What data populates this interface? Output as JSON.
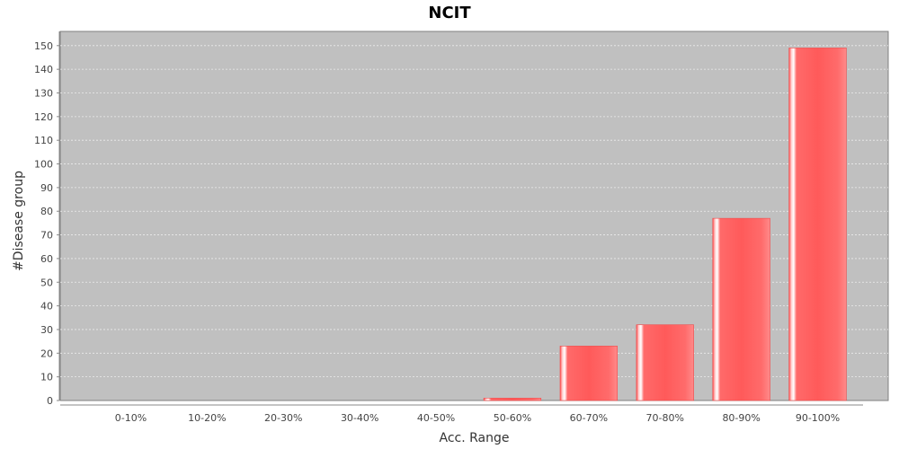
{
  "chart_data": {
    "type": "bar",
    "title": "NCIT",
    "xlabel": "Acc. Range",
    "ylabel": "#Disease group",
    "categories": [
      "0-10%",
      "10-20%",
      "20-30%",
      "30-40%",
      "40-50%",
      "50-60%",
      "60-70%",
      "70-80%",
      "80-90%",
      "90-100%"
    ],
    "values": [
      0,
      0,
      0,
      0,
      0,
      1,
      23,
      32,
      77,
      149
    ],
    "ylim": [
      0,
      156
    ],
    "yticks": [
      0,
      10,
      20,
      30,
      40,
      50,
      60,
      70,
      80,
      90,
      100,
      110,
      120,
      130,
      140,
      150
    ],
    "grid": true,
    "legend": "none",
    "colors": {
      "plot_background": "#c0c0c0",
      "bar_fill": "#ff5a5a",
      "bar_highlight": "#fff0f0",
      "grid": "#e8e8e8"
    }
  }
}
